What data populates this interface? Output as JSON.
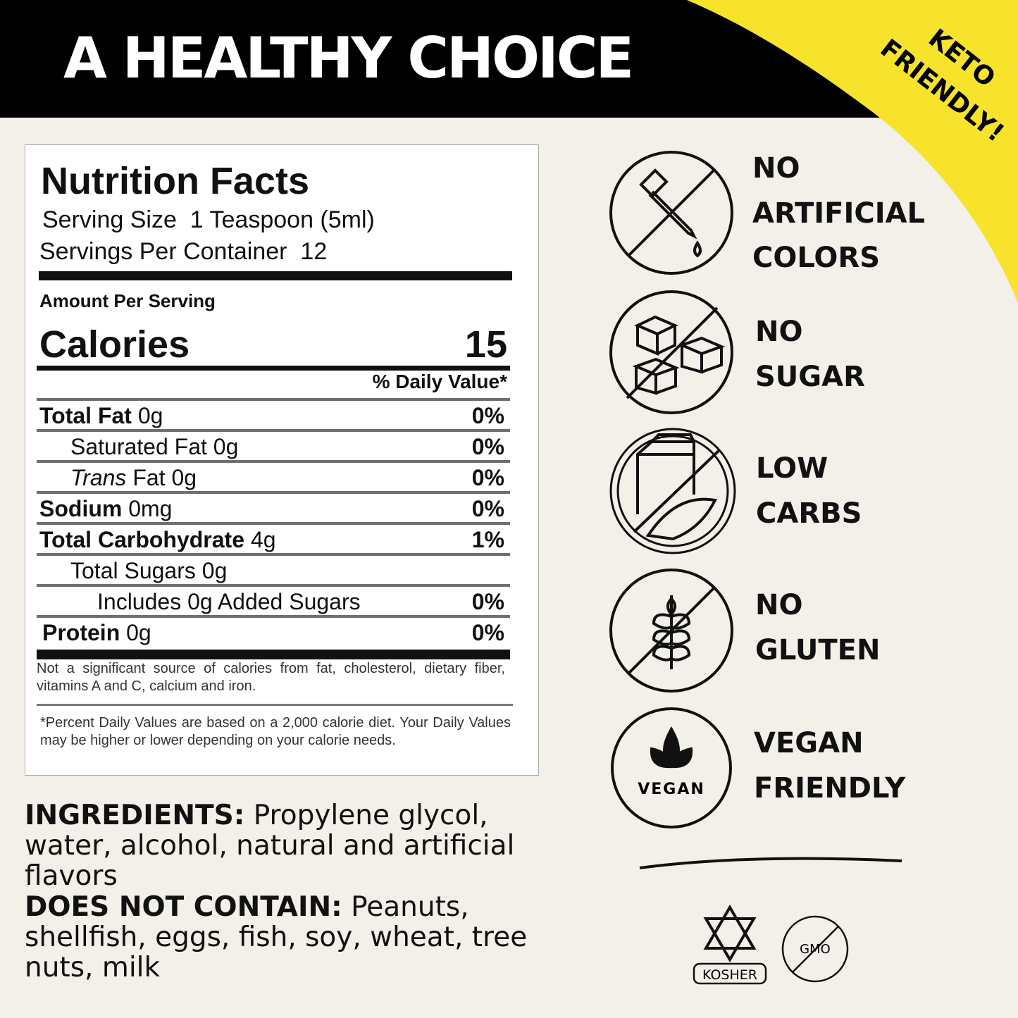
{
  "header": {
    "title": "A HEALTHY CHOICE",
    "badge": [
      "KETO",
      "FRIENDLY!"
    ]
  },
  "nutrition": {
    "title": "Nutrition Facts",
    "serving_size": {
      "label": "Serving Size",
      "value": "1 Teaspoon (5ml)"
    },
    "servings": {
      "label": "Servings Per Container",
      "value": "12"
    },
    "amount_per_serving": "Amount Per Serving",
    "calories": {
      "label": "Calories",
      "value": "15"
    },
    "daily_value_header": "% Daily Value*",
    "rows": [
      {
        "name": "Total Fat",
        "amount": "0g",
        "dv": "0%"
      },
      {
        "name": "Saturated Fat",
        "amount": "0g",
        "dv": "0%"
      },
      {
        "italic": "Trans",
        "name": "Fat",
        "amount": "0g",
        "dv": "0%"
      },
      {
        "name": "Sodium",
        "amount": "0mg",
        "dv": "0%"
      },
      {
        "name": "Total Carbohydrate",
        "amount": "4g",
        "dv": "1%"
      },
      {
        "name": "Total Sugars",
        "amount": "0g"
      },
      {
        "name": "Includes 0g Added Sugars",
        "dv": "0%"
      },
      {
        "name": "Protein",
        "amount": "0g",
        "dv": "0%"
      }
    ],
    "footnote1": "Not a significant source of calories from fat, cholesterol, dietary fiber, vitamins A and C, calcium and iron.",
    "footnote2": "*Percent Daily Values are based on a 2,000 calorie diet. Your Daily Values may be higher or lower depending on your calorie needs."
  },
  "ingredients": {
    "label": "INGREDIENTS:",
    "text": "Propylene glycol, water, alcohol, natural and artificial flavors"
  },
  "allergens": {
    "label": "DOES NOT CONTAIN:",
    "text": "Peanuts, shellfish, eggs, fish, soy, wheat, tree nuts, milk"
  },
  "claims": [
    {
      "lines": [
        "NO",
        "ARTIFICIAL",
        "COLORS"
      ]
    },
    {
      "lines": [
        "NO",
        "SUGAR"
      ]
    },
    {
      "lines": [
        "LOW",
        "CARBS"
      ]
    },
    {
      "lines": [
        "NO",
        "GLUTEN"
      ]
    },
    {
      "lines": [
        "VEGAN",
        "FRIENDLY"
      ],
      "icon_text": "VEGAN"
    }
  ],
  "certifications": {
    "kosher": "KOSHER",
    "gmo": "GMO"
  }
}
